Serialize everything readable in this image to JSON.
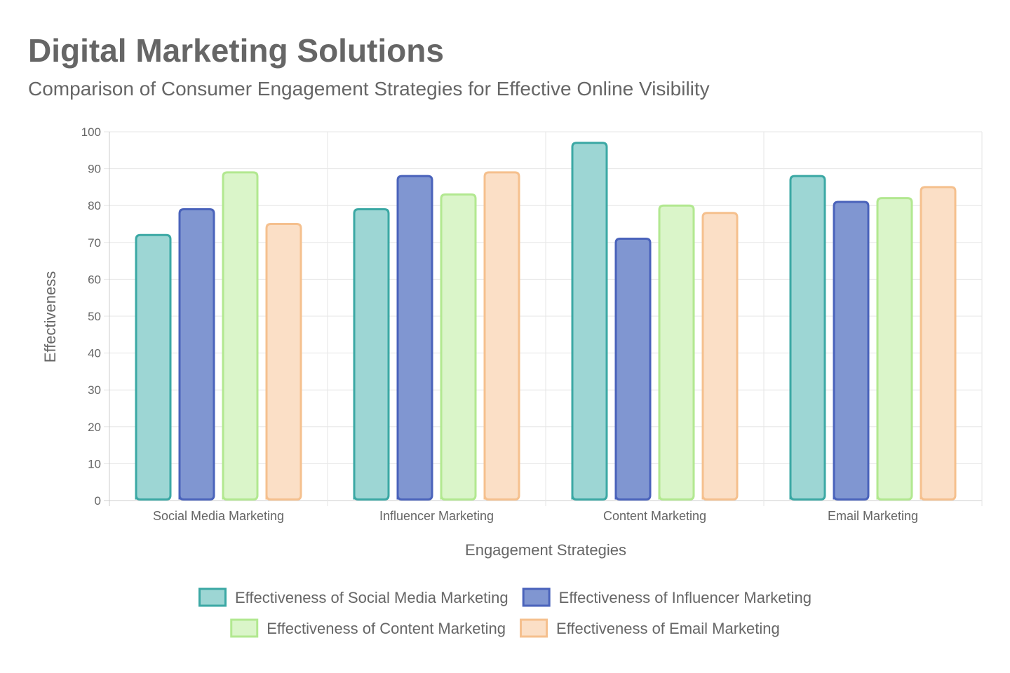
{
  "header": {
    "title": "Digital Marketing Solutions",
    "subtitle": "Comparison of Consumer Engagement Strategies for Effective Online Visibility"
  },
  "chart_data": {
    "type": "bar",
    "title": "Digital Marketing Solutions",
    "subtitle": "Comparison of Consumer Engagement Strategies for Effective Online Visibility",
    "xlabel": "Engagement Strategies",
    "ylabel": "Effectiveness",
    "ylim": [
      0,
      100
    ],
    "yticks": [
      0,
      10,
      20,
      30,
      40,
      50,
      60,
      70,
      80,
      90,
      100
    ],
    "grid": true,
    "legend_position": "bottom",
    "categories": [
      "Social Media Marketing",
      "Influencer Marketing",
      "Content Marketing",
      "Email Marketing"
    ],
    "series": [
      {
        "name": "Effectiveness of Social Media Marketing",
        "values": [
          72,
          79,
          97,
          88
        ],
        "fill": "#9dd6d4",
        "stroke": "#3ba8a4"
      },
      {
        "name": "Effectiveness of Influencer Marketing",
        "values": [
          79,
          88,
          71,
          81
        ],
        "fill": "#8096d1",
        "stroke": "#4a63bb"
      },
      {
        "name": "Effectiveness of Content Marketing",
        "values": [
          89,
          83,
          80,
          82
        ],
        "fill": "#daf5c9",
        "stroke": "#b2e890"
      },
      {
        "name": "Effectiveness of Email Marketing",
        "values": [
          75,
          89,
          78,
          85
        ],
        "fill": "#fbdfc6",
        "stroke": "#f5c08e"
      }
    ]
  }
}
